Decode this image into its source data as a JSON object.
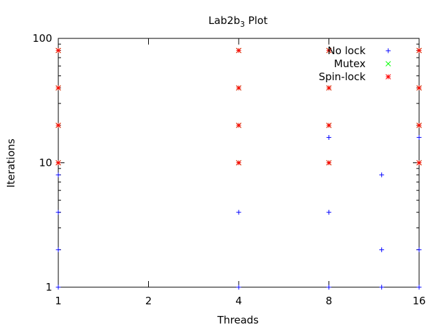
{
  "chart_data": {
    "type": "scatter",
    "title": "Lab2b",
    "title_subscript": "3",
    "title_suffix": " Plot",
    "xlabel": "Threads",
    "ylabel": "Iterations",
    "x_scale": "log2",
    "y_scale": "log10",
    "xlim": [
      1,
      16
    ],
    "ylim": [
      1,
      100
    ],
    "x_ticks": [
      1,
      2,
      4,
      8,
      16
    ],
    "x_tick_labels": [
      "1",
      "2",
      "4",
      "8",
      "16"
    ],
    "y_ticks": [
      1,
      10,
      100
    ],
    "y_tick_labels": [
      "1",
      "10",
      "100"
    ],
    "grid": false,
    "legend_position": "top-right",
    "series": [
      {
        "name": "No lock",
        "marker": "+",
        "color": "#0000ff",
        "points": [
          {
            "x": 1,
            "y": 1
          },
          {
            "x": 1,
            "y": 2
          },
          {
            "x": 1,
            "y": 4
          },
          {
            "x": 1,
            "y": 8
          },
          {
            "x": 4,
            "y": 1
          },
          {
            "x": 4,
            "y": 4
          },
          {
            "x": 8,
            "y": 1
          },
          {
            "x": 8,
            "y": 4
          },
          {
            "x": 8,
            "y": 16
          },
          {
            "x": 12,
            "y": 1
          },
          {
            "x": 12,
            "y": 2
          },
          {
            "x": 12,
            "y": 8
          },
          {
            "x": 16,
            "y": 1
          },
          {
            "x": 16,
            "y": 2
          },
          {
            "x": 16,
            "y": 16
          }
        ]
      },
      {
        "name": "Mutex",
        "marker": "x",
        "color": "#00ff00",
        "points": [
          {
            "x": 1,
            "y": 10
          },
          {
            "x": 1,
            "y": 20
          },
          {
            "x": 1,
            "y": 40
          },
          {
            "x": 1,
            "y": 80
          },
          {
            "x": 4,
            "y": 10
          },
          {
            "x": 4,
            "y": 20
          },
          {
            "x": 4,
            "y": 40
          },
          {
            "x": 4,
            "y": 80
          },
          {
            "x": 8,
            "y": 10
          },
          {
            "x": 8,
            "y": 20
          },
          {
            "x": 8,
            "y": 40
          },
          {
            "x": 8,
            "y": 80
          },
          {
            "x": 16,
            "y": 10
          },
          {
            "x": 16,
            "y": 20
          },
          {
            "x": 16,
            "y": 40
          },
          {
            "x": 16,
            "y": 80
          }
        ]
      },
      {
        "name": "Spin-lock",
        "marker": "*",
        "color": "#ff0000",
        "points": [
          {
            "x": 1,
            "y": 10
          },
          {
            "x": 1,
            "y": 20
          },
          {
            "x": 1,
            "y": 40
          },
          {
            "x": 1,
            "y": 80
          },
          {
            "x": 4,
            "y": 10
          },
          {
            "x": 4,
            "y": 20
          },
          {
            "x": 4,
            "y": 40
          },
          {
            "x": 4,
            "y": 80
          },
          {
            "x": 8,
            "y": 10
          },
          {
            "x": 8,
            "y": 20
          },
          {
            "x": 8,
            "y": 40
          },
          {
            "x": 8,
            "y": 80
          },
          {
            "x": 16,
            "y": 10
          },
          {
            "x": 16,
            "y": 20
          },
          {
            "x": 16,
            "y": 40
          },
          {
            "x": 16,
            "y": 80
          }
        ]
      }
    ]
  }
}
